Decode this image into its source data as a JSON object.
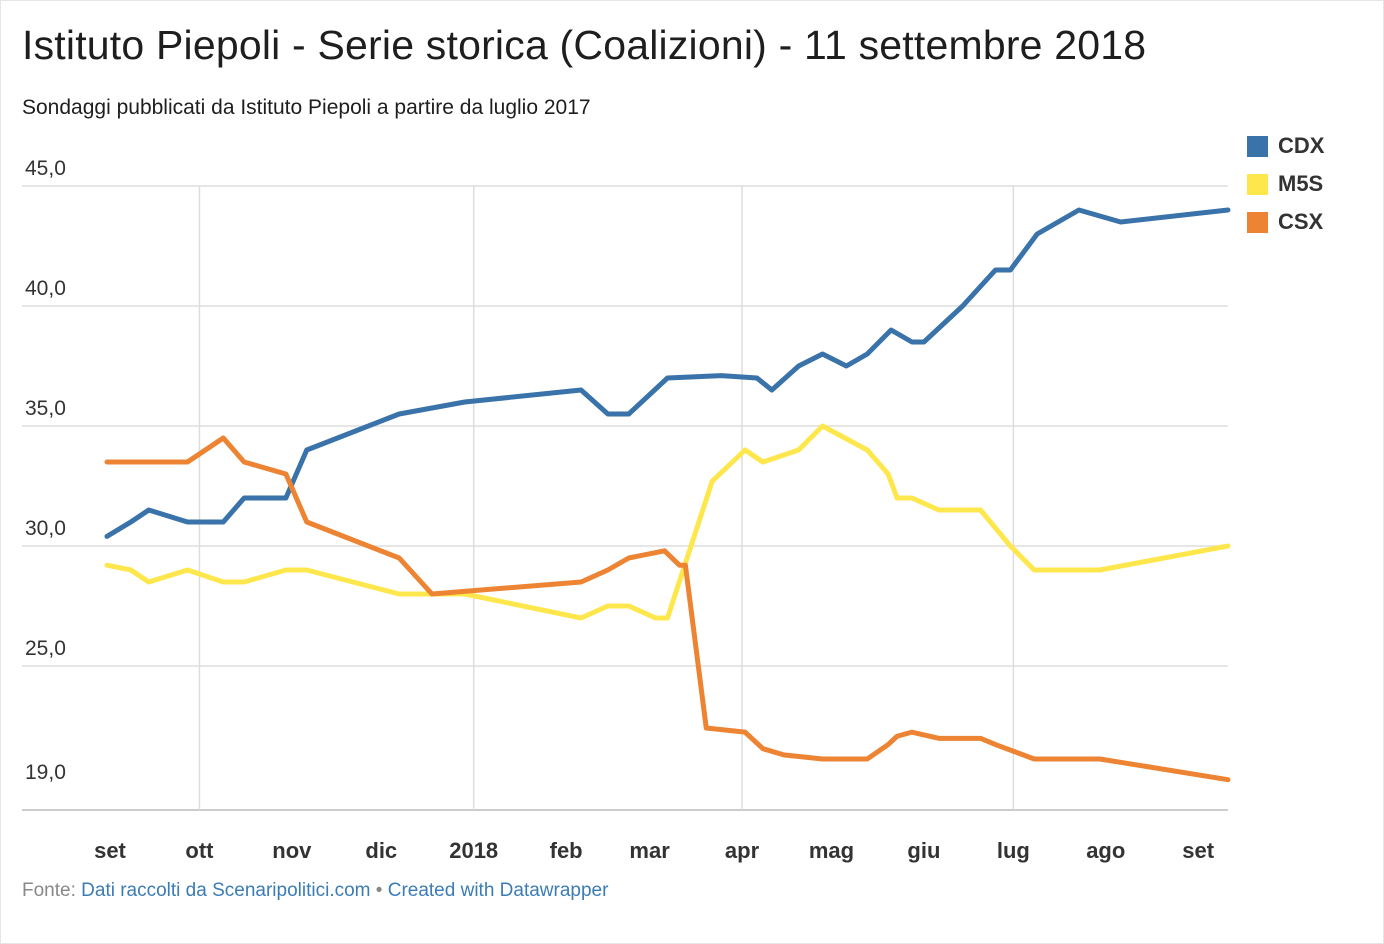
{
  "chart_data": {
    "type": "line",
    "title": "Istituto Piepoli - Serie storica (Coalizioni) - 11 settembre 2018",
    "subtitle": "Sondaggi pubblicati da Istituto Piepoli a partire da luglio 2017",
    "y_ticks": [
      {
        "value": 45,
        "label": "45,0"
      },
      {
        "value": 40,
        "label": "40,0"
      },
      {
        "value": 35,
        "label": "35,0"
      },
      {
        "value": 30,
        "label": "30,0"
      },
      {
        "value": 25,
        "label": "25,0"
      },
      {
        "value": 19,
        "label": "19,0"
      }
    ],
    "ylim": [
      19,
      45
    ],
    "x_ticks": [
      {
        "date": "2017-09-01",
        "label": "set"
      },
      {
        "date": "2017-10-01",
        "label": "ott"
      },
      {
        "date": "2017-11-01",
        "label": "nov"
      },
      {
        "date": "2017-12-01",
        "label": "dic"
      },
      {
        "date": "2018-01-01",
        "label": "2018"
      },
      {
        "date": "2018-02-01",
        "label": "feb"
      },
      {
        "date": "2018-03-01",
        "label": "mar"
      },
      {
        "date": "2018-04-01",
        "label": "apr"
      },
      {
        "date": "2018-05-01",
        "label": "mag"
      },
      {
        "date": "2018-06-01",
        "label": "giu"
      },
      {
        "date": "2018-07-01",
        "label": "lug"
      },
      {
        "date": "2018-08-01",
        "label": "ago"
      },
      {
        "date": "2018-09-01",
        "label": "set"
      }
    ],
    "x_gridlines": [
      "2017-10-01",
      "2018-01-01",
      "2018-04-01",
      "2018-07-01"
    ],
    "xlim": [
      "2017-08-31",
      "2018-09-11"
    ],
    "gap": [
      "2018-02-27",
      "2018-03-15"
    ],
    "legend_position": "top-right",
    "series": [
      {
        "name": "CDX",
        "color": "#3a73aa",
        "points": [
          [
            "2017-08-31",
            30.4
          ],
          [
            "2017-09-08",
            31.0
          ],
          [
            "2017-09-14",
            31.5
          ],
          [
            "2017-09-27",
            31.0
          ],
          [
            "2017-10-09",
            31.0
          ],
          [
            "2017-10-16",
            32.0
          ],
          [
            "2017-10-30",
            32.0
          ],
          [
            "2017-11-06",
            34.0
          ],
          [
            "2017-12-07",
            35.5
          ],
          [
            "2017-12-29",
            36.0
          ],
          [
            "2018-02-06",
            36.5
          ],
          [
            "2018-02-15",
            35.5
          ],
          [
            "2018-02-22",
            35.5
          ],
          [
            "2018-03-07",
            37.0
          ],
          [
            "2018-03-25",
            37.1
          ],
          [
            "2018-04-06",
            37.0
          ],
          [
            "2018-04-11",
            36.5
          ],
          [
            "2018-04-20",
            37.5
          ],
          [
            "2018-04-28",
            38.0
          ],
          [
            "2018-05-06",
            37.5
          ],
          [
            "2018-05-13",
            38.0
          ],
          [
            "2018-05-21",
            39.0
          ],
          [
            "2018-05-28",
            38.5
          ],
          [
            "2018-06-01",
            38.5
          ],
          [
            "2018-06-14",
            40.0
          ],
          [
            "2018-06-25",
            41.5
          ],
          [
            "2018-06-30",
            41.5
          ],
          [
            "2018-07-09",
            43.0
          ],
          [
            "2018-07-23",
            44.0
          ],
          [
            "2018-08-06",
            43.5
          ],
          [
            "2018-09-11",
            44.0
          ]
        ]
      },
      {
        "name": "M5S",
        "color": "#fde74c",
        "points": [
          [
            "2017-08-31",
            29.2
          ],
          [
            "2017-09-08",
            29.0
          ],
          [
            "2017-09-14",
            28.5
          ],
          [
            "2017-09-27",
            29.0
          ],
          [
            "2017-10-09",
            28.5
          ],
          [
            "2017-10-16",
            28.5
          ],
          [
            "2017-10-30",
            29.0
          ],
          [
            "2017-11-06",
            29.0
          ],
          [
            "2017-12-07",
            28.0
          ],
          [
            "2017-12-29",
            28.0
          ],
          [
            "2018-02-06",
            27.0
          ],
          [
            "2018-02-15",
            27.5
          ],
          [
            "2018-02-22",
            27.5
          ],
          [
            "2018-03-03",
            27.0
          ],
          [
            "2018-03-07",
            27.0
          ],
          [
            "2018-03-22",
            32.7
          ],
          [
            "2018-04-02",
            34.0
          ],
          [
            "2018-04-08",
            33.5
          ],
          [
            "2018-04-20",
            34.0
          ],
          [
            "2018-04-28",
            35.0
          ],
          [
            "2018-05-13",
            34.0
          ],
          [
            "2018-05-20",
            33.0
          ],
          [
            "2018-05-23",
            32.0
          ],
          [
            "2018-05-28",
            32.0
          ],
          [
            "2018-06-06",
            31.5
          ],
          [
            "2018-06-20",
            31.5
          ],
          [
            "2018-06-30",
            30.0
          ],
          [
            "2018-07-08",
            29.0
          ],
          [
            "2018-07-30",
            29.0
          ],
          [
            "2018-09-11",
            30.0
          ]
        ]
      },
      {
        "name": "CSX",
        "color": "#ed8433",
        "points": [
          [
            "2017-08-31",
            33.5
          ],
          [
            "2017-09-27",
            33.5
          ],
          [
            "2017-10-09",
            34.5
          ],
          [
            "2017-10-16",
            33.5
          ],
          [
            "2017-10-30",
            33.0
          ],
          [
            "2017-11-06",
            31.0
          ],
          [
            "2017-12-07",
            29.5
          ],
          [
            "2017-12-18",
            28.0
          ],
          [
            "2018-02-06",
            28.5
          ],
          [
            "2018-02-15",
            29.0
          ],
          [
            "2018-02-22",
            29.5
          ],
          [
            "2018-03-06",
            29.8
          ],
          [
            "2018-03-11",
            29.2
          ],
          [
            "2018-03-13",
            29.2
          ],
          [
            "2018-03-20",
            22.0
          ],
          [
            "2018-04-02",
            21.8
          ],
          [
            "2018-04-08",
            21.0
          ],
          [
            "2018-04-15",
            20.7
          ],
          [
            "2018-04-28",
            20.5
          ],
          [
            "2018-05-13",
            20.5
          ],
          [
            "2018-05-20",
            21.2
          ],
          [
            "2018-05-23",
            21.6
          ],
          [
            "2018-05-28",
            21.8
          ],
          [
            "2018-06-06",
            21.5
          ],
          [
            "2018-06-20",
            21.5
          ],
          [
            "2018-06-25",
            21.2
          ],
          [
            "2018-07-08",
            20.5
          ],
          [
            "2018-07-30",
            20.5
          ],
          [
            "2018-09-11",
            19.5
          ]
        ]
      }
    ]
  },
  "footer": {
    "source_prefix": "Fonte: ",
    "source_link": "Dati raccolti da Scenaripolitici.com",
    "separator": " • ",
    "credit_link": "Created with Datawrapper"
  }
}
